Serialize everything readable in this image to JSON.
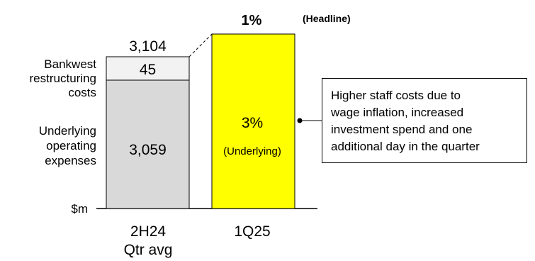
{
  "chart_data": {
    "type": "bar",
    "stacked": true,
    "categories": [
      "2H24\nQtr avg",
      "1Q25"
    ],
    "category_lines": [
      [
        "2H24",
        "Qtr avg"
      ],
      [
        "1Q25"
      ]
    ],
    "y_unit_label": "$m",
    "series": [
      {
        "name": "Underlying operating expenses",
        "values": [
          3059,
          null
        ],
        "color": "#d9d9d9"
      },
      {
        "name": "Bankwest restructuring costs",
        "values": [
          45,
          null
        ],
        "color": "#f2f2f2"
      }
    ],
    "series_labels": {
      "restructuring": [
        "Bankwest",
        "restructuring",
        "costs"
      ],
      "underlying": [
        "Underlying",
        "operating",
        "expenses"
      ]
    },
    "totals": [
      3104,
      null
    ],
    "total_labels": [
      "3,104",
      ""
    ],
    "segment_labels": {
      "underlying": "3,059",
      "restructuring": "45"
    },
    "bar_1q25": {
      "color": "#ffff00",
      "headline_growth": "1%",
      "headline_label": "(Headline)",
      "underlying_growth": "3%",
      "underlying_label": "(Underlying)"
    }
  },
  "callout": {
    "lines": [
      "Higher staff costs due to",
      "wage inflation, increased",
      "investment spend and one",
      "additional day in the quarter"
    ]
  }
}
